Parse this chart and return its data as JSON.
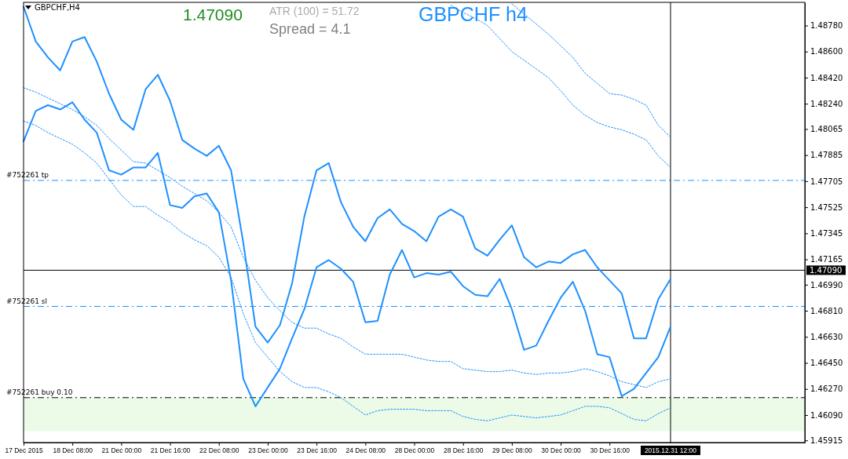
{
  "chart_data": {
    "type": "line",
    "title": "GBPCHF,H4",
    "subtitle": "GBPCHF h4",
    "annotations": [
      "1.47090",
      "ATR (100) =  51.72",
      "Spread  =  4.1"
    ],
    "categories": [
      "17 Dec 2015",
      null,
      null,
      null,
      "18 Dec 08:00",
      null,
      null,
      null,
      "21 Dec 00:00",
      null,
      null,
      null,
      "21 Dec 16:00",
      null,
      null,
      null,
      "22 Dec 08:00",
      null,
      null,
      null,
      "23 Dec 00:00",
      null,
      null,
      null,
      "23 Dec 16:00",
      null,
      null,
      null,
      "24 Dec 08:00",
      null,
      null,
      null,
      "28 Dec 00:00",
      null,
      null,
      null,
      "28 Dec 16:00",
      null,
      null,
      null,
      "29 Dec 08:00",
      null,
      null,
      null,
      "30 Dec 00:00",
      null,
      null,
      null,
      "30 Dec 16:00",
      null,
      null,
      null,
      null,
      "2015.12.31 12:00",
      null,
      null,
      null,
      null,
      null,
      null,
      null,
      null,
      null,
      null
    ],
    "series": [
      {
        "color": "#1e90ff",
        "line_style": "solid",
        "values": [
          1.4891,
          1.4867,
          1.4856,
          1.4847,
          1.4867,
          1.487,
          1.4853,
          1.4831,
          1.4813,
          1.4806,
          1.4834,
          1.4844,
          1.4826,
          1.4799,
          1.4793,
          1.4788,
          1.4795,
          1.4778,
          1.4728,
          1.467,
          1.4659,
          1.4671,
          1.47,
          1.4746,
          1.4778,
          1.4783,
          1.4756,
          1.4739,
          1.4729,
          1.4745,
          1.4751,
          1.4741,
          1.4736,
          1.4729,
          1.4746,
          1.4751,
          1.4746,
          1.4724,
          1.4719,
          1.473,
          1.474,
          1.4718,
          1.4711,
          1.4715,
          1.4714,
          1.472,
          1.4723,
          1.4711,
          1.4702,
          1.4693,
          1.4662,
          1.4662,
          1.4689,
          1.4703,
          null,
          null,
          null,
          null,
          null,
          null,
          null,
          null,
          null,
          null
        ]
      },
      {
        "color": "#1e90ff",
        "line_style": "solid",
        "values": [
          1.4798,
          1.4819,
          1.4823,
          1.482,
          1.4825,
          1.4813,
          1.4804,
          1.4778,
          1.4775,
          1.478,
          1.478,
          1.479,
          1.4754,
          1.4752,
          1.476,
          1.4762,
          1.4749,
          1.4702,
          1.4634,
          1.4615,
          1.4628,
          1.4641,
          1.4662,
          1.4682,
          1.4711,
          1.4716,
          1.471,
          1.4701,
          1.4673,
          1.4674,
          1.4706,
          1.4723,
          1.4704,
          1.4707,
          1.4706,
          1.4708,
          1.4698,
          1.4692,
          1.4691,
          1.4703,
          1.4682,
          1.4654,
          1.4657,
          1.4674,
          1.469,
          1.4701,
          1.4681,
          1.4651,
          1.4649,
          1.4622,
          1.4627,
          1.4638,
          1.4649,
          1.467,
          null,
          null,
          null,
          null,
          null,
          null,
          null,
          null,
          null,
          null
        ]
      },
      {
        "color": "#1e90ff",
        "line_style": "dotted",
        "values": [
          1.4835,
          1.4832,
          1.4828,
          1.4824,
          1.482,
          1.4815,
          1.4809,
          1.48,
          1.4792,
          1.4784,
          1.4783,
          1.4778,
          1.4773,
          1.4767,
          1.4762,
          1.4757,
          1.4749,
          1.4739,
          1.4718,
          1.4702,
          1.469,
          1.4681,
          1.4673,
          1.4669,
          1.4669,
          1.4665,
          1.4662,
          1.4656,
          1.4651,
          1.4651,
          1.4651,
          1.4651,
          1.4649,
          1.4647,
          1.4646,
          1.4646,
          1.4641,
          1.464,
          1.4639,
          1.4639,
          1.464,
          1.4638,
          1.4637,
          1.4638,
          1.4638,
          1.4639,
          1.4641,
          1.4639,
          1.4636,
          1.4632,
          1.463,
          1.4628,
          1.4632,
          1.4634,
          null,
          null,
          null,
          null,
          null,
          null,
          null,
          null,
          null,
          null
        ]
      },
      {
        "color": "#1e90ff",
        "line_style": "dotted",
        "values": [
          1.4812,
          1.4809,
          1.4804,
          1.48,
          1.4796,
          1.479,
          1.4783,
          1.4772,
          1.4761,
          1.4753,
          1.4753,
          1.4747,
          1.4742,
          1.4735,
          1.473,
          1.4726,
          1.4718,
          1.4704,
          1.4679,
          1.4659,
          1.4649,
          1.4639,
          1.4632,
          1.4628,
          1.4628,
          1.4625,
          1.4621,
          1.4615,
          1.4609,
          1.4612,
          1.4613,
          1.4613,
          1.4613,
          1.4612,
          1.4612,
          1.4612,
          1.4608,
          1.4606,
          1.4605,
          1.4607,
          1.4609,
          1.4608,
          1.4607,
          1.4608,
          1.4609,
          1.4612,
          1.4615,
          1.4615,
          1.4614,
          1.461,
          1.4606,
          1.4605,
          1.461,
          1.4614,
          null,
          null,
          null,
          null,
          null,
          null,
          null,
          null,
          null,
          null
        ]
      },
      {
        "color": "#1e90ff",
        "line_style": "dotted",
        "values": [
          null,
          null,
          null,
          null,
          null,
          null,
          null,
          null,
          null,
          null,
          null,
          null,
          null,
          null,
          null,
          null,
          null,
          null,
          null,
          null,
          null,
          null,
          null,
          null,
          null,
          null,
          null,
          null,
          null,
          null,
          null,
          null,
          null,
          null,
          null,
          null,
          null,
          null,
          null,
          null,
          1.4893,
          1.4886,
          1.4879,
          1.4872,
          1.4864,
          1.4856,
          1.4845,
          1.4838,
          1.4831,
          1.483,
          1.4827,
          1.4823,
          1.4809,
          1.4801,
          null,
          null,
          null,
          null,
          null,
          null,
          null,
          null,
          null,
          null
        ]
      },
      {
        "color": "#1e90ff",
        "line_style": "dotted",
        "values": [
          null,
          null,
          null,
          null,
          null,
          null,
          null,
          null,
          null,
          null,
          null,
          null,
          null,
          null,
          null,
          null,
          null,
          null,
          null,
          null,
          null,
          null,
          null,
          null,
          null,
          null,
          null,
          null,
          null,
          null,
          null,
          null,
          null,
          null,
          null,
          1.4892,
          1.4887,
          1.4883,
          1.4878,
          1.4869,
          1.486,
          1.4854,
          1.4848,
          1.4842,
          1.4833,
          1.4823,
          1.4816,
          1.4811,
          1.4808,
          1.4806,
          1.4803,
          1.4799,
          1.4788,
          1.478,
          null,
          null,
          null,
          null,
          null,
          null,
          null,
          null,
          null,
          null
        ]
      }
    ],
    "ylim": [
      1.459,
      1.4894
    ],
    "yticks": [
      {
        "value": 1.4878,
        "label": "1.48780"
      },
      {
        "value": 1.486,
        "label": "1.48600"
      },
      {
        "value": 1.4842,
        "label": "1.48420"
      },
      {
        "value": 1.4824,
        "label": "1.48240"
      },
      1.48065,
      1.47885,
      1.47705,
      1.47525,
      1.47345,
      1.47165,
      {
        "value": 1.4699,
        "label": "1.46990"
      },
      {
        "value": 1.4681,
        "label": "1.46810"
      },
      {
        "value": 1.4663,
        "label": "1.46630"
      },
      {
        "value": 1.4645,
        "label": "1.46450"
      },
      {
        "value": 1.4627,
        "label": "1.46270"
      },
      {
        "value": 1.4609,
        "label": "1.46090"
      },
      1.45915
    ],
    "ref_lines": [
      {
        "axis": "y",
        "value": 1.4771,
        "label": "#752261 tp",
        "color": "#1e90ff",
        "line_style": "dashed"
      },
      {
        "axis": "y",
        "value": 1.4684,
        "label": "#752261 sl",
        "color": "#1e90ff",
        "line_style": "dashed"
      },
      {
        "axis": "y",
        "value": 1.4621,
        "label": "#752261 buy 0.10",
        "color": "#000000",
        "line_style": "dashed"
      },
      {
        "axis": "y",
        "value": 1.4709,
        "label": "1.47090",
        "color": "#000000",
        "line_style": "solid"
      },
      {
        "axis": "x",
        "value": "2015.12.31 12:00",
        "color": "#000000",
        "line_style": "solid"
      }
    ],
    "bands": [
      {
        "axis": "y",
        "from": 1.4598,
        "to": 1.4621,
        "color": "#ebfbe8"
      }
    ]
  }
}
